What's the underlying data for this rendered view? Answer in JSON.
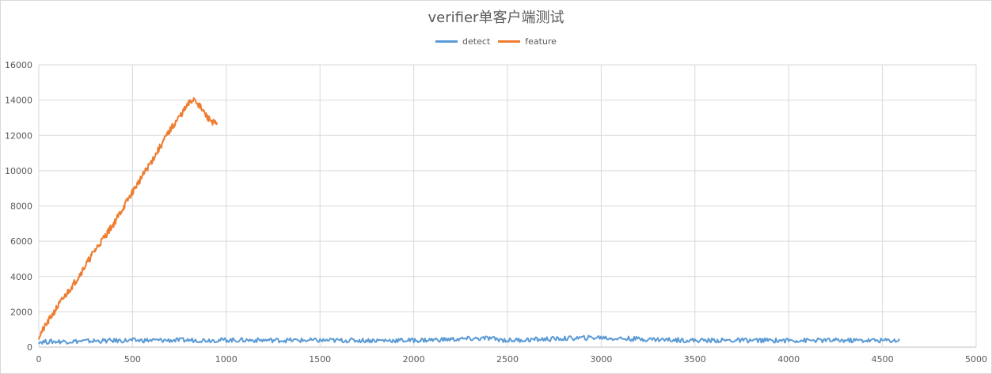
{
  "chart_data": {
    "type": "line",
    "title": "verifier单客户端测试",
    "xlabel": "",
    "ylabel": "",
    "xlim": [
      0,
      5000
    ],
    "ylim": [
      0,
      16000
    ],
    "x_ticks": [
      "0",
      "500",
      "1000",
      "1500",
      "2000",
      "2500",
      "3000",
      "3500",
      "4000",
      "4500",
      "5000"
    ],
    "y_ticks": [
      "0",
      "2000",
      "4000",
      "6000",
      "8000",
      "10000",
      "12000",
      "14000",
      "16000"
    ],
    "grid": true,
    "legend_position": "top",
    "series": [
      {
        "name": "detect",
        "color": "#5b9bd5",
        "x": [
          0,
          500,
          1000,
          1500,
          2000,
          2400,
          2500,
          3000,
          3050,
          3500,
          4000,
          4590
        ],
        "y": [
          300,
          380,
          400,
          380,
          380,
          500,
          380,
          550,
          500,
          380,
          380,
          380
        ]
      },
      {
        "name": "feature",
        "color": "#ed7d31",
        "x": [
          0,
          100,
          200,
          300,
          400,
          500,
          600,
          700,
          800,
          830,
          900,
          950
        ],
        "y": [
          600,
          2300,
          3800,
          5500,
          7000,
          8800,
          10500,
          12300,
          13800,
          14100,
          13000,
          12600
        ]
      }
    ]
  }
}
